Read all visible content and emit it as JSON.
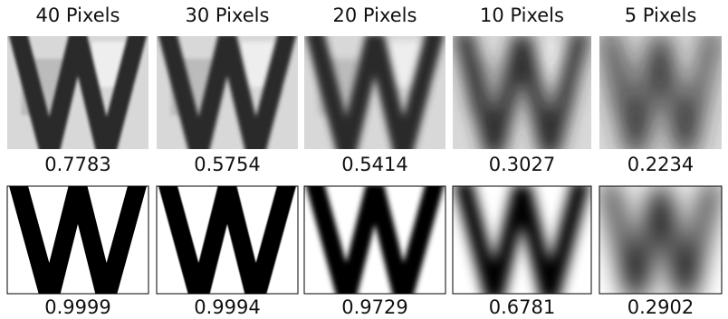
{
  "columns": [
    {
      "label": "40 Pixels",
      "noisy_score": "0.7783",
      "clean_score": "0.9999"
    },
    {
      "label": "30 Pixels",
      "noisy_score": "0.5754",
      "clean_score": "0.9994"
    },
    {
      "label": "20 Pixels",
      "noisy_score": "0.5414",
      "clean_score": "0.9729"
    },
    {
      "label": "10 Pixels",
      "noisy_score": "0.3027",
      "clean_score": "0.6781"
    },
    {
      "label": "5 Pixels",
      "noisy_score": "0.2234",
      "clean_score": "0.2902"
    }
  ]
}
